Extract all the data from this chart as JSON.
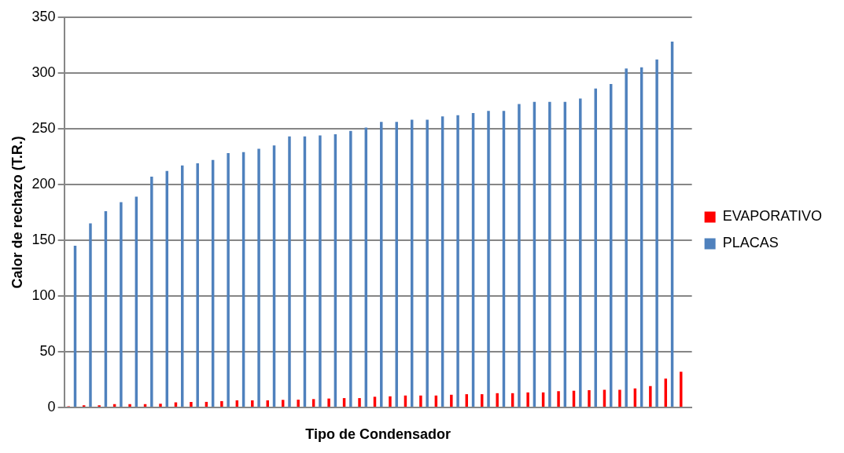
{
  "chart_data": {
    "type": "bar",
    "xlabel": "Tipo de Condensador",
    "ylabel": "Calor de rechazo (T.R.)",
    "categories": [
      null,
      null,
      null,
      null,
      null,
      null,
      null,
      null,
      null,
      null,
      null,
      null,
      null,
      null,
      null,
      null,
      null,
      null,
      null,
      null,
      null,
      null,
      null,
      null,
      null,
      null,
      null,
      null,
      null,
      null,
      null,
      null,
      null,
      null,
      null,
      null,
      null,
      null,
      null,
      null,
      null
    ],
    "series": [
      {
        "name": "EVAPORATIVO",
        "color": "#ff0000",
        "values": [
          1.1,
          2,
          2,
          3,
          3,
          3,
          3.4,
          4.6,
          5,
          5,
          5.7,
          6.4,
          6.4,
          6.4,
          6.8,
          7,
          7.5,
          8,
          8.4,
          8.4,
          9.6,
          10,
          10.7,
          10.7,
          10.7,
          11.4,
          11.9,
          11.9,
          12.8,
          12.8,
          13.5,
          13.5,
          14.6,
          15,
          15.5,
          15.8,
          15.8,
          17.1,
          19.2,
          25.8,
          32
        ]
      },
      {
        "name": "PLACAS",
        "color": "#4f81bd",
        "values": [
          145,
          165,
          176,
          184,
          189,
          207,
          212,
          217,
          219,
          222,
          228,
          229,
          232,
          235,
          243,
          243,
          244,
          245,
          248,
          251,
          256,
          256,
          258,
          258,
          261,
          262,
          264,
          266,
          266,
          272,
          274,
          274,
          274,
          277,
          286,
          290,
          304,
          305,
          312,
          328,
          null
        ]
      }
    ],
    "ylim": [
      0,
      350
    ],
    "yticks": [
      0,
      50,
      100,
      150,
      200,
      250,
      300,
      350
    ],
    "grid": "y",
    "legend": "right"
  }
}
